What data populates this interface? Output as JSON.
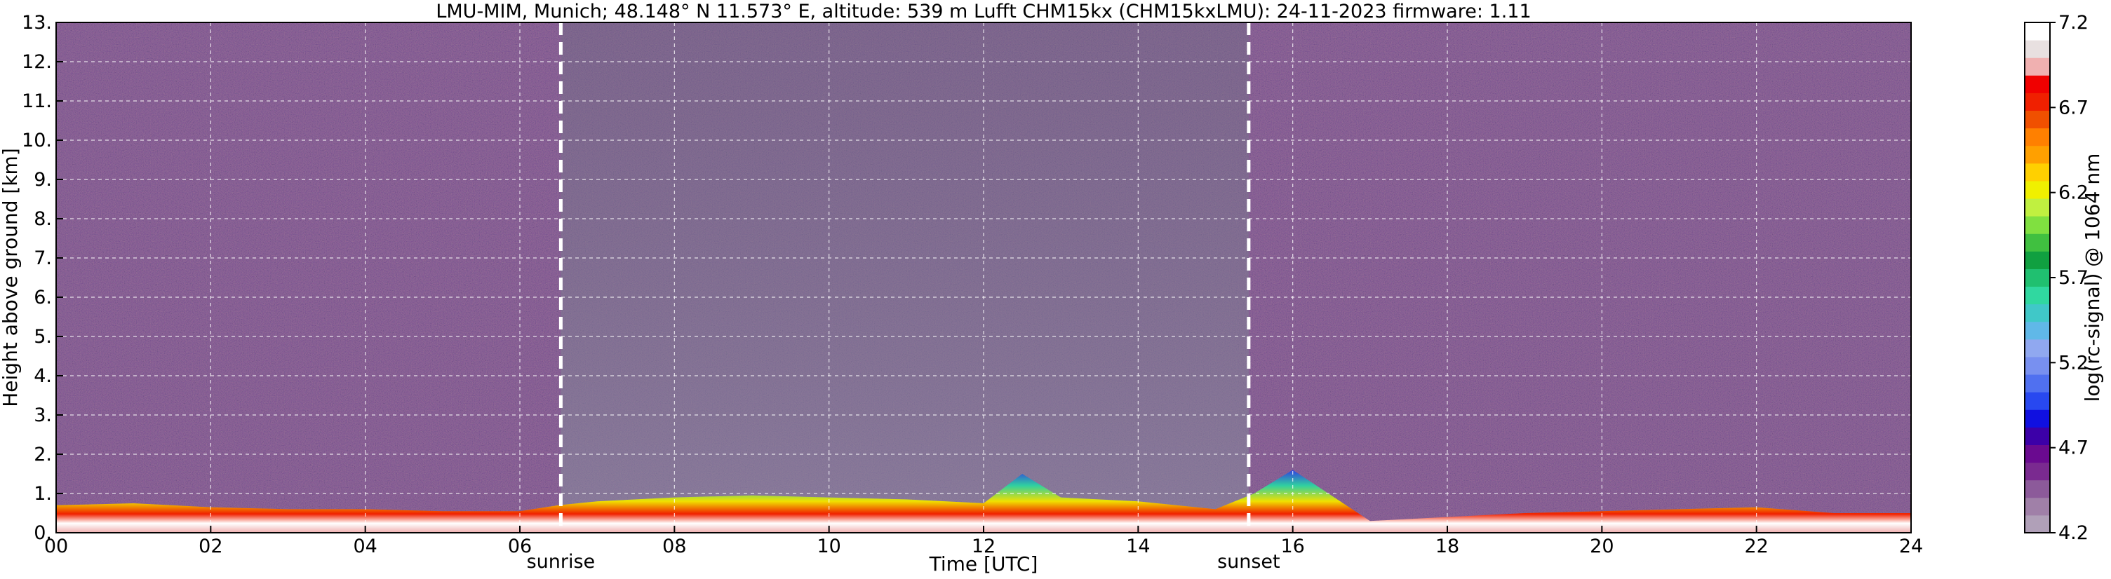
{
  "chart_data": {
    "type": "heatmap",
    "title": "LMU-MIM, Munich; 48.148° N 11.573° E, altitude: 539 m    Lufft CHM15kx (CHM15kxLMU): 24-11-2023    firmware: 1.11",
    "xlabel": "Time [UTC]",
    "ylabel": "Height above ground [km]",
    "x_tick_labels": [
      "00",
      "02",
      "04",
      "06",
      "08",
      "10",
      "12",
      "14",
      "16",
      "18",
      "20",
      "22",
      "24"
    ],
    "x_ticks": [
      0,
      2,
      4,
      6,
      8,
      10,
      12,
      14,
      16,
      18,
      20,
      22,
      24
    ],
    "y_tick_labels": [
      "0.",
      "1.",
      "2.",
      "3.",
      "4.",
      "5.",
      "6.",
      "7.",
      "8.",
      "9.",
      "10.",
      "11.",
      "12.",
      "13."
    ],
    "y_ticks": [
      0,
      1,
      2,
      3,
      4,
      5,
      6,
      7,
      8,
      9,
      10,
      11,
      12,
      13
    ],
    "xlim": [
      0,
      24
    ],
    "ylim": [
      0,
      13
    ],
    "grid": true,
    "annotations": [
      {
        "label": "sunrise",
        "x": 6.53
      },
      {
        "label": "sunset",
        "x": 15.43
      }
    ],
    "colorbar": {
      "label": "log(rc-signal) @ 1064 nm",
      "range": [
        4.2,
        7.2
      ],
      "tick_labels": [
        "4.2",
        "4.7",
        "5.2",
        "5.7",
        "6.2",
        "6.7",
        "7.2"
      ],
      "ticks": [
        4.2,
        4.7,
        5.2,
        5.7,
        6.2,
        6.7,
        7.2
      ],
      "colors": [
        "#b0a0b8",
        "#a080a8",
        "#8c5a9a",
        "#7a2a90",
        "#6a0a90",
        "#3c00a8",
        "#1010e0",
        "#2848f0",
        "#5070f0",
        "#7890f0",
        "#90a8f0",
        "#60b8e8",
        "#40c8c8",
        "#30d8a0",
        "#20c070",
        "#10a040",
        "#40c040",
        "#80e040",
        "#c0f040",
        "#f0f000",
        "#ffd000",
        "#ffa000",
        "#ff8000",
        "#f05000",
        "#f02000",
        "#f00000",
        "#f0b0b0",
        "#e8e0e0",
        "#ffffff"
      ]
    },
    "boundary_layer": {
      "x": [
        0,
        1,
        2,
        3,
        4,
        5,
        6,
        6.5,
        7,
        8,
        9,
        10,
        11,
        12,
        12.5,
        13,
        14,
        15,
        15.5,
        16,
        17,
        18,
        19,
        20,
        21,
        22,
        23,
        24
      ],
      "y": [
        0.7,
        0.75,
        0.65,
        0.6,
        0.6,
        0.55,
        0.55,
        0.7,
        0.8,
        0.9,
        0.95,
        0.9,
        0.85,
        0.75,
        1.5,
        0.9,
        0.8,
        0.6,
        1.0,
        1.6,
        0.3,
        0.4,
        0.5,
        0.55,
        0.6,
        0.65,
        0.5,
        0.5
      ]
    }
  }
}
